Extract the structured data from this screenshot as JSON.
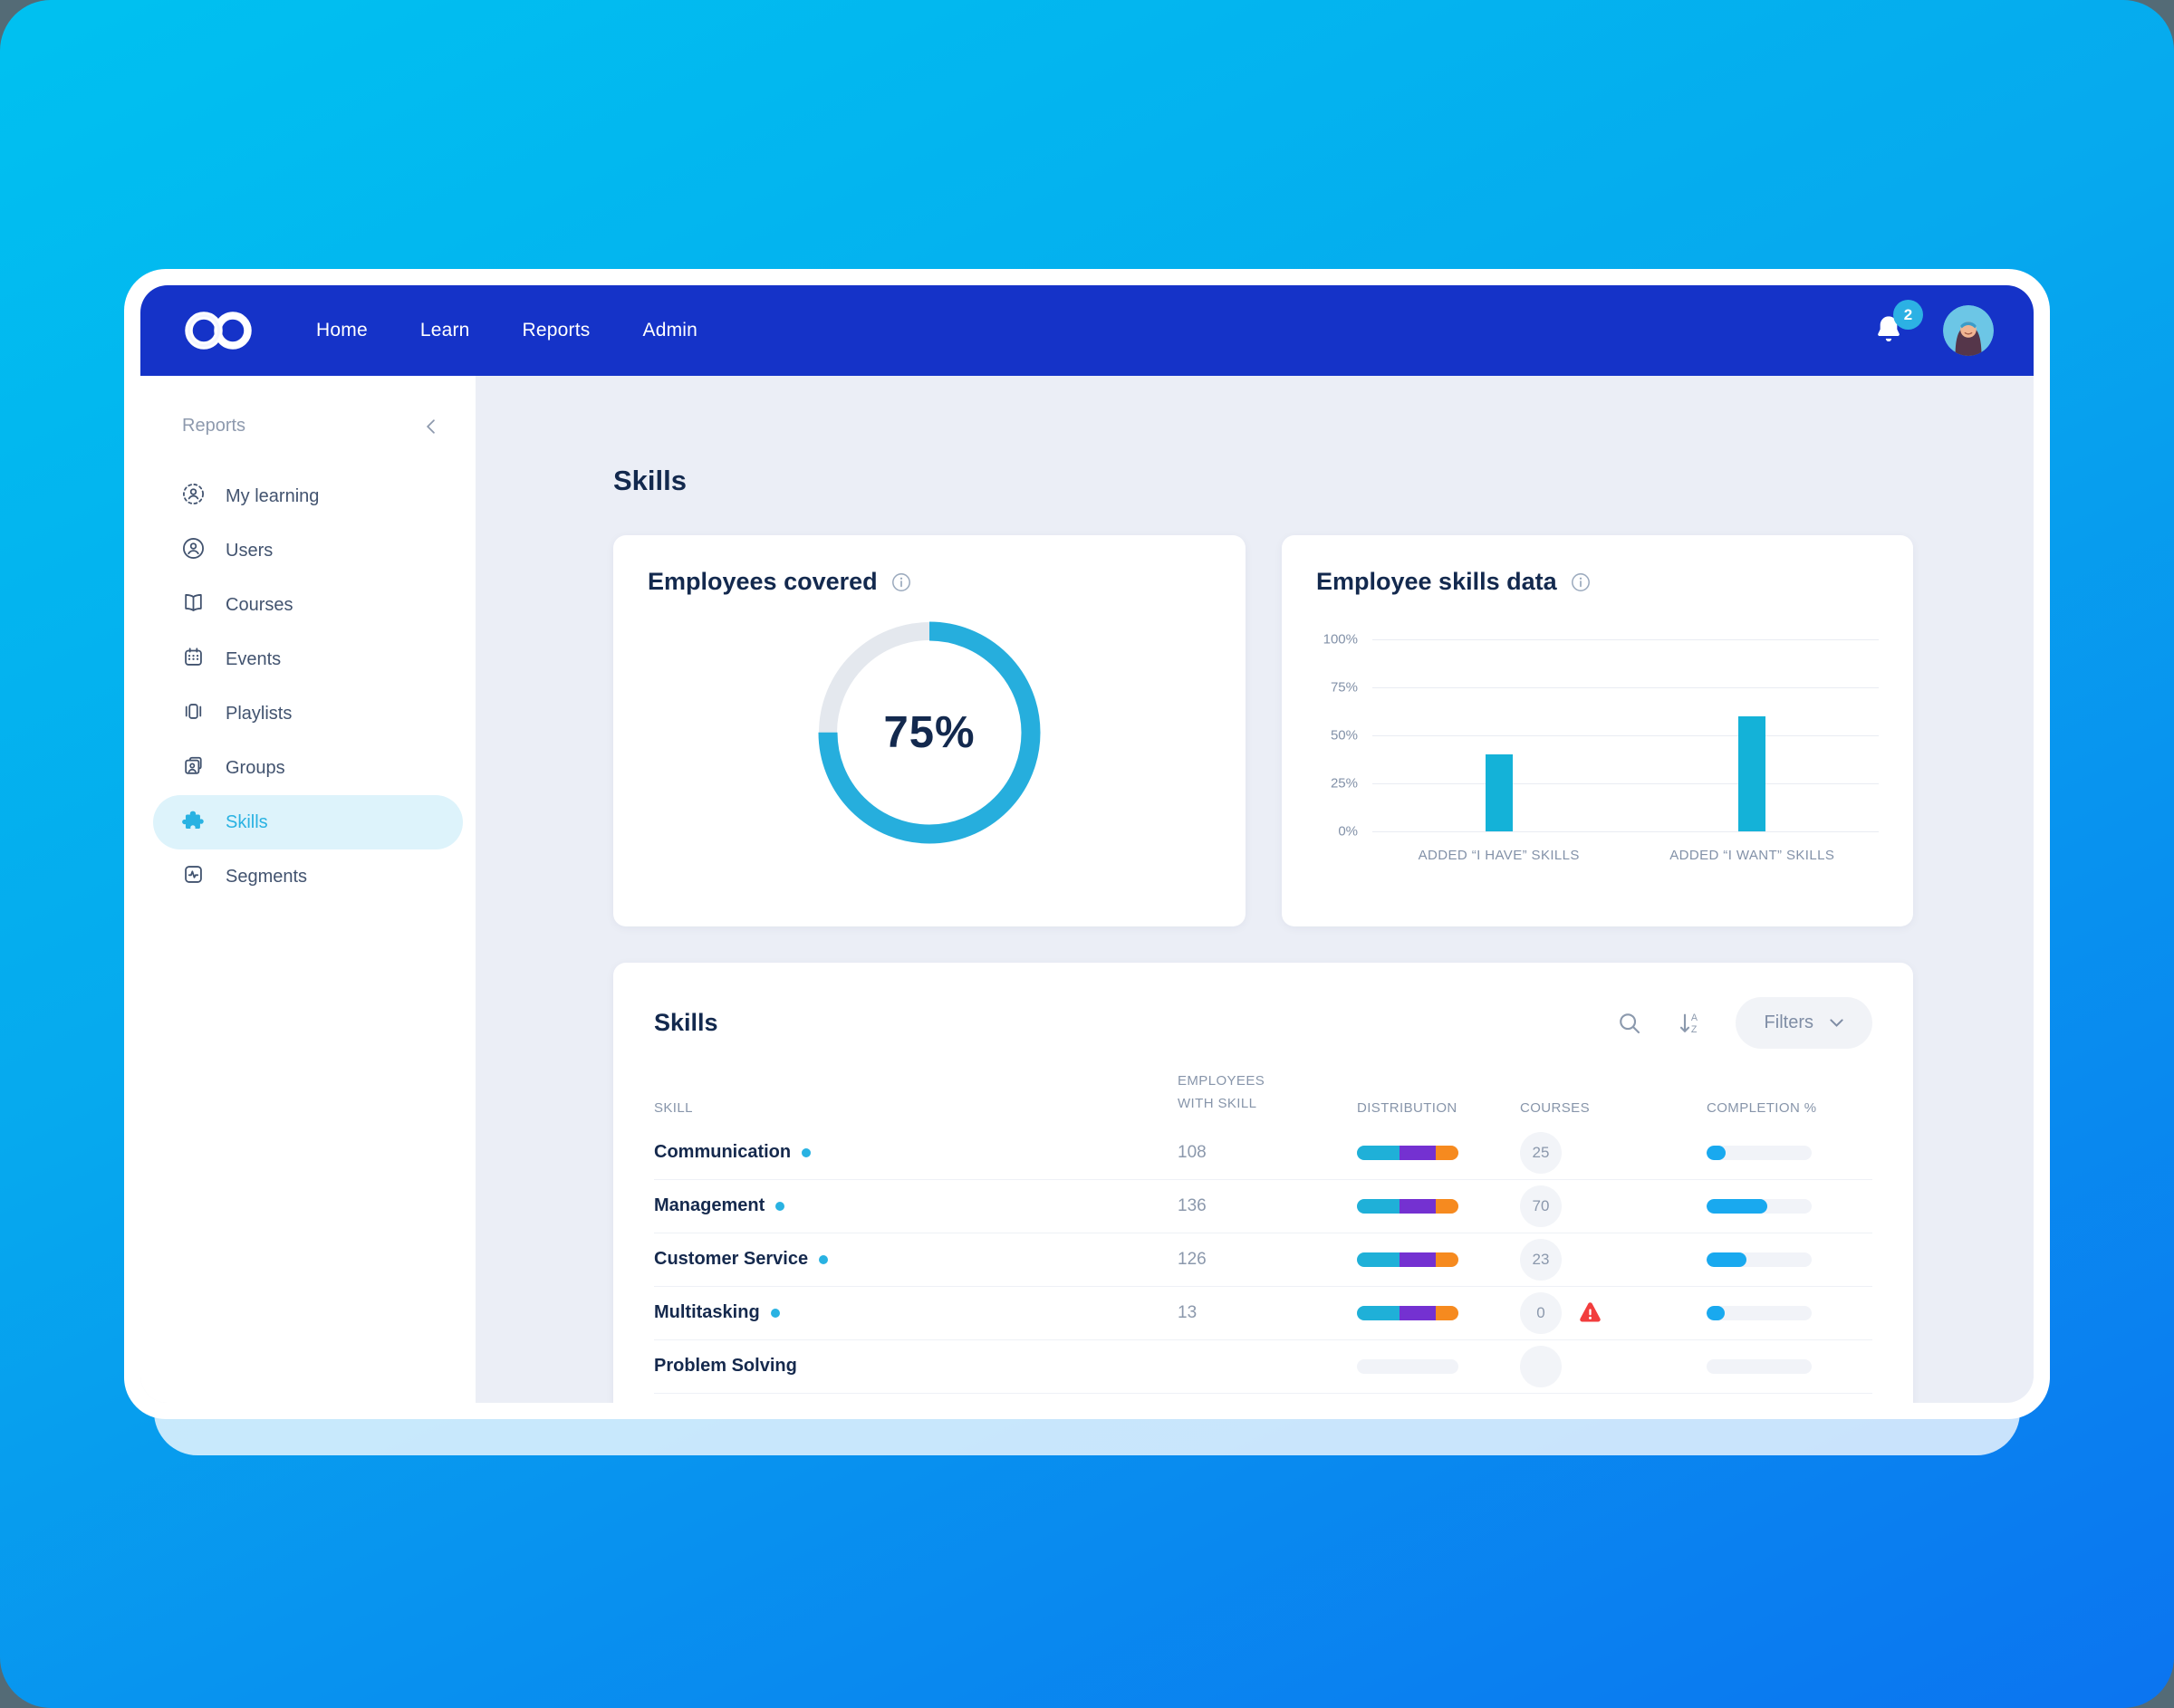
{
  "colors": {
    "nav_bg": "#1533c8",
    "accent_cyan": "#29b2e2",
    "bar_cyan": "#14b2d8",
    "completion_blue": "#19a9ef",
    "dist_cyan": "#1fb0d8",
    "dist_purple": "#7431d1",
    "dist_orange": "#f68a1f",
    "warning_red": "#f23d3d",
    "heading_navy": "#13294e",
    "content_bg": "#ebeef6"
  },
  "nav": {
    "items": [
      {
        "label": "Home"
      },
      {
        "label": "Learn"
      },
      {
        "label": "Reports"
      },
      {
        "label": "Admin"
      }
    ],
    "notification_count": "2"
  },
  "sidebar": {
    "title": "Reports",
    "items": [
      {
        "label": "My learning",
        "icon": "my-learning-icon",
        "active": false
      },
      {
        "label": "Users",
        "icon": "users-icon",
        "active": false
      },
      {
        "label": "Courses",
        "icon": "courses-icon",
        "active": false
      },
      {
        "label": "Events",
        "icon": "events-icon",
        "active": false
      },
      {
        "label": "Playlists",
        "icon": "playlists-icon",
        "active": false
      },
      {
        "label": "Groups",
        "icon": "groups-icon",
        "active": false
      },
      {
        "label": "Skills",
        "icon": "skills-icon",
        "active": true
      },
      {
        "label": "Segments",
        "icon": "segments-icon",
        "active": false
      }
    ]
  },
  "page": {
    "title": "Skills"
  },
  "chart_data": [
    {
      "type": "donut",
      "title": "Employees covered",
      "value_label": "75%",
      "percent": 75
    },
    {
      "type": "bar",
      "title": "Employee skills data",
      "categories": [
        "ADDED “I HAVE” SKILLS",
        "ADDED “I WANT” SKILLS"
      ],
      "values": [
        40,
        60
      ],
      "ylim": [
        0,
        100
      ],
      "yticks": [
        "100%",
        "75%",
        "50%",
        "25%",
        "0%"
      ],
      "grid": true,
      "legend": false
    }
  ],
  "skills_table": {
    "title": "Skills",
    "filters_label": "Filters",
    "columns": [
      "Skill",
      "Employees with skill",
      "Distribution",
      "Courses",
      "Completion %"
    ],
    "rows": [
      {
        "skill": "Communication",
        "employees": "108",
        "distribution": [
          42,
          36,
          22
        ],
        "courses": "25",
        "warning": false,
        "completion": 18,
        "placeholder": false
      },
      {
        "skill": "Management",
        "employees": "136",
        "distribution": [
          42,
          36,
          22
        ],
        "courses": "70",
        "warning": false,
        "completion": 58,
        "placeholder": false
      },
      {
        "skill": "Customer Service",
        "employees": "126",
        "distribution": [
          42,
          36,
          22
        ],
        "courses": "23",
        "warning": false,
        "completion": 38,
        "placeholder": false
      },
      {
        "skill": "Multitasking",
        "employees": "13",
        "distribution": [
          42,
          36,
          22
        ],
        "courses": "0",
        "warning": true,
        "completion": 17,
        "placeholder": false
      },
      {
        "skill": "Problem Solving",
        "employees": "",
        "distribution": [
          0,
          0,
          0
        ],
        "courses": "",
        "warning": false,
        "completion": 0,
        "placeholder": true
      }
    ]
  }
}
